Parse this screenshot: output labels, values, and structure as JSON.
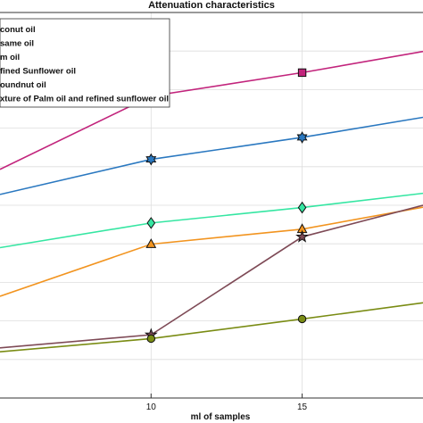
{
  "chart_data": {
    "type": "line",
    "title": "Attenuation characteristics",
    "xlabel": "ml of samples",
    "ylabel": "",
    "xlim": [
      5,
      19
    ],
    "ylim": [
      0,
      1
    ],
    "x_ticks": [
      10,
      15
    ],
    "grid": true,
    "legend_position": "top-left",
    "series": [
      {
        "name": "Coconut oil",
        "legend_label": "conut oil",
        "color": "#c2247c",
        "marker": "square",
        "x": [
          5,
          10,
          15,
          19
        ],
        "y": [
          0.593,
          0.783,
          0.844,
          0.899
        ]
      },
      {
        "name": "Sesame oil",
        "legend_label": "same oil",
        "color": "#2a78c0",
        "marker": "hexagram",
        "x": [
          5,
          10,
          15,
          19
        ],
        "y": [
          0.528,
          0.619,
          0.676,
          0.728
        ]
      },
      {
        "name": "Palm oil",
        "legend_label": "m oil",
        "color": "#35e6a2",
        "marker": "diamond",
        "x": [
          5,
          10,
          15,
          19
        ],
        "y": [
          0.39,
          0.454,
          0.494,
          0.531
        ]
      },
      {
        "name": "Refined Sunflower oil",
        "legend_label": "fined Sunflower oil",
        "color": "#f2941f",
        "marker": "triangle",
        "x": [
          5,
          10,
          15,
          19
        ],
        "y": [
          0.264,
          0.399,
          0.438,
          0.495
        ]
      },
      {
        "name": "Groundnut oil",
        "legend_label": "oundnut oil",
        "color": "#7e4a56",
        "marker": "pentagram",
        "x": [
          5,
          10,
          15,
          19
        ],
        "y": [
          0.13,
          0.164,
          0.418,
          0.5
        ]
      },
      {
        "name": "Mixture of Palm oil and refined sunflower oil",
        "legend_label": "xture of Palm oil and refined sunflower oil",
        "color": "#7a8c14",
        "marker": "circle",
        "x": [
          5,
          10,
          15,
          19
        ],
        "y": [
          0.12,
          0.154,
          0.205,
          0.247
        ]
      }
    ]
  }
}
